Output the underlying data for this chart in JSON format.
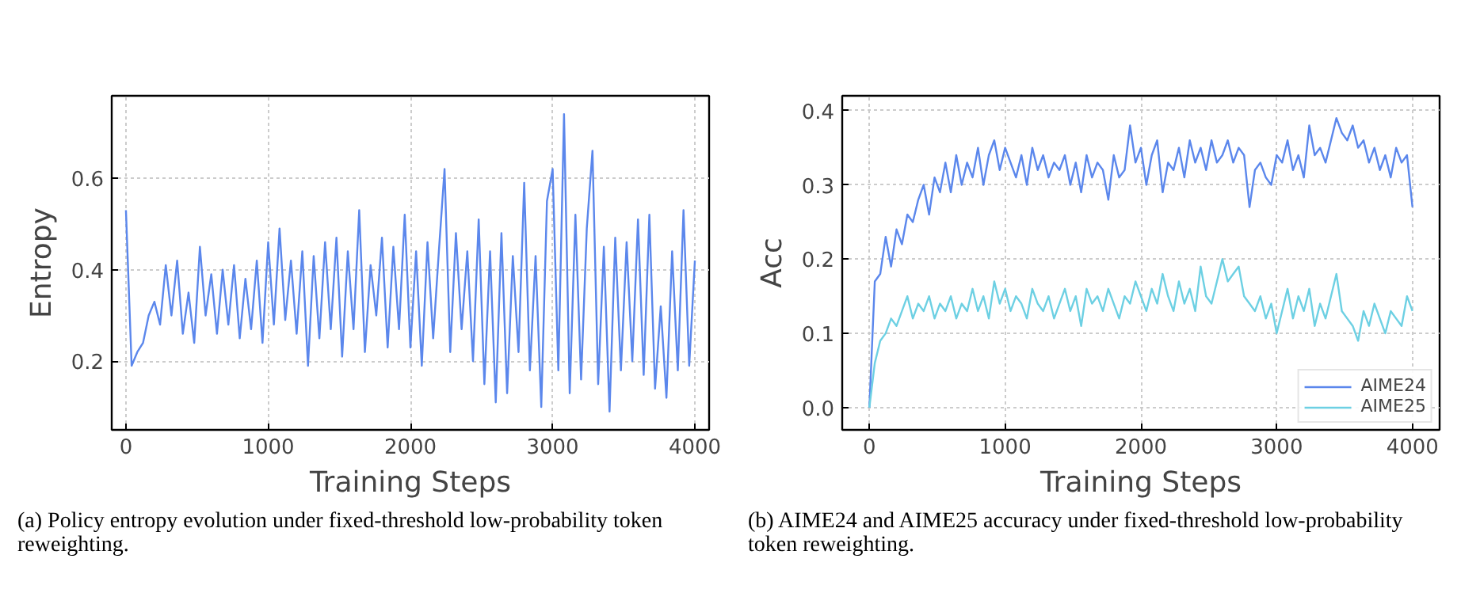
{
  "chart_data": [
    {
      "type": "line",
      "xlabel": "Training Steps",
      "ylabel": "Entropy",
      "x": [
        0,
        40,
        80,
        120,
        160,
        200,
        240,
        280,
        320,
        360,
        400,
        440,
        480,
        520,
        560,
        600,
        640,
        680,
        720,
        760,
        800,
        840,
        880,
        920,
        960,
        1000,
        1040,
        1080,
        1120,
        1160,
        1200,
        1240,
        1280,
        1320,
        1360,
        1400,
        1440,
        1480,
        1520,
        1560,
        1600,
        1640,
        1680,
        1720,
        1760,
        1800,
        1840,
        1880,
        1920,
        1960,
        2000,
        2040,
        2080,
        2120,
        2160,
        2200,
        2240,
        2280,
        2320,
        2360,
        2400,
        2440,
        2480,
        2520,
        2560,
        2600,
        2640,
        2680,
        2720,
        2760,
        2800,
        2840,
        2880,
        2920,
        2960,
        3000,
        3040,
        3080,
        3120,
        3160,
        3200,
        3240,
        3280,
        3320,
        3360,
        3400,
        3440,
        3480,
        3520,
        3560,
        3600,
        3640,
        3680,
        3720,
        3760,
        3800,
        3840,
        3880,
        3920,
        3960,
        4000
      ],
      "series": [
        {
          "color": "#5b87ec",
          "values": [
            0.53,
            0.19,
            0.22,
            0.24,
            0.3,
            0.33,
            0.28,
            0.41,
            0.3,
            0.42,
            0.26,
            0.35,
            0.24,
            0.45,
            0.3,
            0.39,
            0.26,
            0.4,
            0.28,
            0.41,
            0.25,
            0.38,
            0.27,
            0.42,
            0.24,
            0.46,
            0.28,
            0.49,
            0.29,
            0.42,
            0.26,
            0.44,
            0.19,
            0.43,
            0.25,
            0.46,
            0.27,
            0.47,
            0.21,
            0.44,
            0.27,
            0.53,
            0.22,
            0.41,
            0.3,
            0.47,
            0.23,
            0.45,
            0.27,
            0.52,
            0.23,
            0.44,
            0.19,
            0.46,
            0.25,
            0.44,
            0.62,
            0.22,
            0.48,
            0.27,
            0.44,
            0.2,
            0.51,
            0.15,
            0.44,
            0.11,
            0.48,
            0.13,
            0.43,
            0.22,
            0.59,
            0.18,
            0.43,
            0.1,
            0.55,
            0.62,
            0.18,
            0.74,
            0.13,
            0.52,
            0.16,
            0.49,
            0.66,
            0.15,
            0.45,
            0.09,
            0.47,
            0.18,
            0.46,
            0.2,
            0.51,
            0.17,
            0.52,
            0.14,
            0.32,
            0.12,
            0.44,
            0.18,
            0.53,
            0.19,
            0.42
          ]
        }
      ],
      "xlim": [
        -100,
        4100
      ],
      "xticks": [
        0,
        1000,
        2000,
        3000,
        4000
      ],
      "ylim": [
        0.05,
        0.78
      ],
      "yticks": [
        0.2,
        0.4,
        0.6
      ],
      "grid": true,
      "legend": false,
      "annotations": [
        "(a) Policy entropy evolution under fixed-threshold low-probability token reweighting."
      ]
    },
    {
      "type": "line",
      "xlabel": "Training Steps",
      "ylabel": "Acc",
      "x": [
        0,
        40,
        80,
        120,
        160,
        200,
        240,
        280,
        320,
        360,
        400,
        440,
        480,
        520,
        560,
        600,
        640,
        680,
        720,
        760,
        800,
        840,
        880,
        920,
        960,
        1000,
        1040,
        1080,
        1120,
        1160,
        1200,
        1240,
        1280,
        1320,
        1360,
        1400,
        1440,
        1480,
        1520,
        1560,
        1600,
        1640,
        1680,
        1720,
        1760,
        1800,
        1840,
        1880,
        1920,
        1960,
        2000,
        2040,
        2080,
        2120,
        2160,
        2200,
        2240,
        2280,
        2320,
        2360,
        2400,
        2440,
        2480,
        2520,
        2560,
        2600,
        2640,
        2680,
        2720,
        2760,
        2800,
        2840,
        2880,
        2920,
        2960,
        3000,
        3040,
        3080,
        3120,
        3160,
        3200,
        3240,
        3280,
        3320,
        3360,
        3400,
        3440,
        3480,
        3520,
        3560,
        3600,
        3640,
        3680,
        3720,
        3760,
        3800,
        3840,
        3880,
        3920,
        3960,
        4000
      ],
      "series": [
        {
          "name": "AIME24",
          "color": "#5b87ec",
          "values": [
            0.0,
            0.17,
            0.18,
            0.23,
            0.19,
            0.24,
            0.22,
            0.26,
            0.25,
            0.28,
            0.3,
            0.26,
            0.31,
            0.29,
            0.33,
            0.29,
            0.34,
            0.3,
            0.33,
            0.31,
            0.35,
            0.3,
            0.34,
            0.36,
            0.32,
            0.35,
            0.33,
            0.31,
            0.34,
            0.3,
            0.35,
            0.32,
            0.34,
            0.31,
            0.33,
            0.32,
            0.34,
            0.3,
            0.33,
            0.29,
            0.34,
            0.31,
            0.33,
            0.32,
            0.28,
            0.34,
            0.31,
            0.32,
            0.38,
            0.33,
            0.35,
            0.3,
            0.34,
            0.36,
            0.29,
            0.33,
            0.32,
            0.35,
            0.31,
            0.36,
            0.33,
            0.35,
            0.32,
            0.36,
            0.33,
            0.34,
            0.36,
            0.33,
            0.35,
            0.34,
            0.27,
            0.32,
            0.33,
            0.31,
            0.3,
            0.34,
            0.33,
            0.36,
            0.32,
            0.34,
            0.31,
            0.38,
            0.34,
            0.35,
            0.33,
            0.36,
            0.39,
            0.37,
            0.36,
            0.38,
            0.35,
            0.36,
            0.33,
            0.35,
            0.32,
            0.34,
            0.31,
            0.35,
            0.33,
            0.34,
            0.27
          ]
        },
        {
          "name": "AIME25",
          "color": "#6dd0e3",
          "values": [
            0.0,
            0.06,
            0.09,
            0.1,
            0.12,
            0.11,
            0.13,
            0.15,
            0.12,
            0.14,
            0.13,
            0.15,
            0.12,
            0.14,
            0.13,
            0.15,
            0.12,
            0.14,
            0.13,
            0.16,
            0.13,
            0.15,
            0.12,
            0.17,
            0.14,
            0.16,
            0.13,
            0.15,
            0.14,
            0.12,
            0.16,
            0.14,
            0.13,
            0.15,
            0.12,
            0.14,
            0.16,
            0.13,
            0.15,
            0.11,
            0.16,
            0.14,
            0.15,
            0.13,
            0.16,
            0.14,
            0.12,
            0.15,
            0.14,
            0.17,
            0.15,
            0.13,
            0.16,
            0.14,
            0.18,
            0.15,
            0.13,
            0.17,
            0.14,
            0.16,
            0.13,
            0.19,
            0.15,
            0.14,
            0.17,
            0.2,
            0.17,
            0.18,
            0.19,
            0.15,
            0.14,
            0.13,
            0.15,
            0.12,
            0.14,
            0.1,
            0.13,
            0.16,
            0.12,
            0.15,
            0.13,
            0.16,
            0.11,
            0.14,
            0.12,
            0.15,
            0.18,
            0.13,
            0.12,
            0.11,
            0.09,
            0.13,
            0.11,
            0.14,
            0.12,
            0.1,
            0.13,
            0.12,
            0.11,
            0.15,
            0.13
          ]
        }
      ],
      "xlim": [
        -200,
        4200
      ],
      "xticks": [
        0,
        1000,
        2000,
        3000,
        4000
      ],
      "ylim": [
        -0.03,
        0.42
      ],
      "yticks": [
        {
          "value": 0,
          "label": "0.0"
        },
        0.1,
        0.2,
        0.3,
        0.4
      ],
      "grid": true,
      "legend": "bottom right",
      "annotations": [
        "(b) AIME24 and AIME25 accuracy under fixed-threshold low-probability token reweighting."
      ]
    }
  ]
}
